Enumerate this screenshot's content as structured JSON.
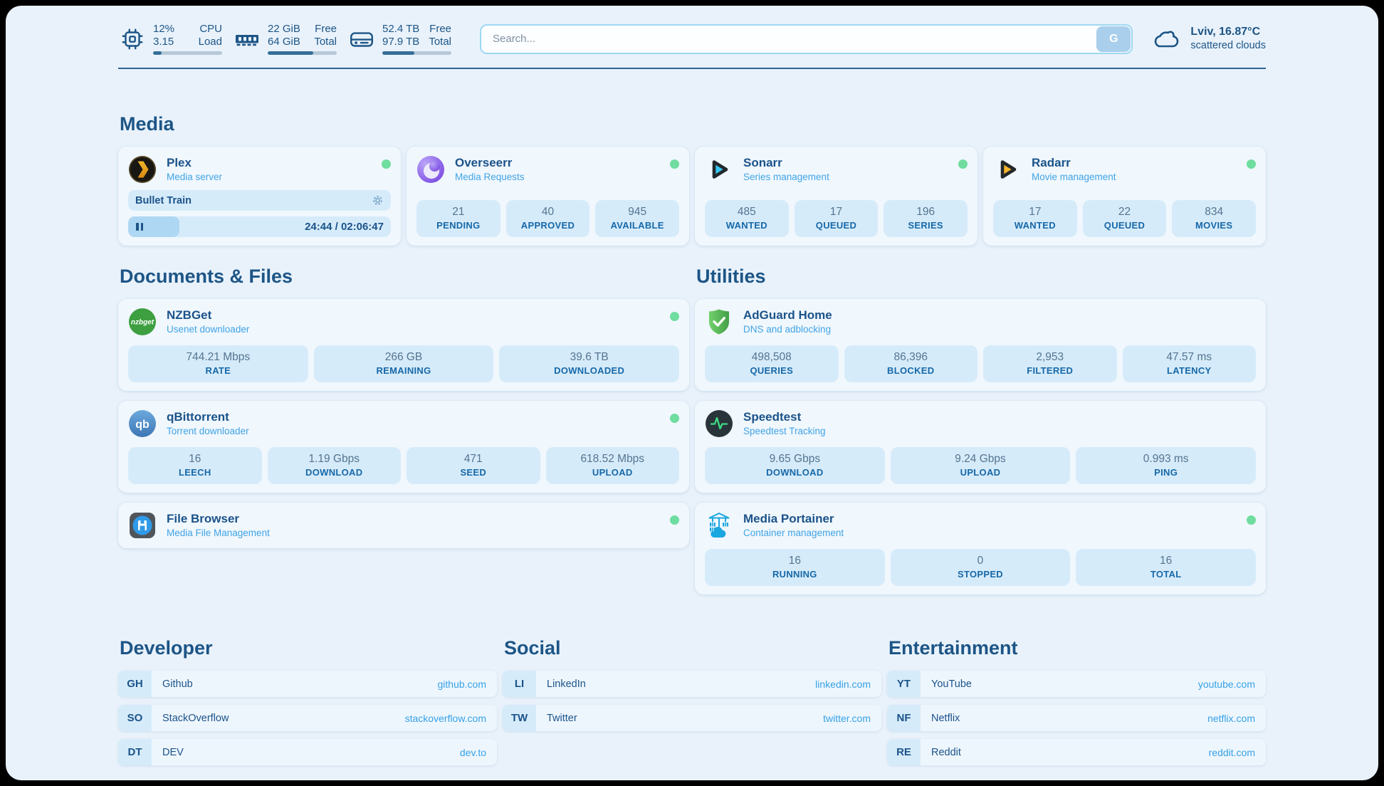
{
  "colors": {
    "accent": "#36a1e6",
    "navy": "#1d5586",
    "online_dot": "#6fdd9f",
    "tile_bg": "#d6ebfa",
    "panel_bg": "#e9f2fb"
  },
  "topbar": {
    "cpu": {
      "icon": "cpu-icon",
      "values": [
        "12%",
        "3.15"
      ],
      "labels": [
        "CPU",
        "Load"
      ],
      "progress": 12
    },
    "ram": {
      "icon": "ram-icon",
      "values": [
        "22 GiB",
        "64 GiB"
      ],
      "labels": [
        "Free",
        "Total"
      ],
      "progress": 66
    },
    "disk": {
      "icon": "disk-icon",
      "values": [
        "52.4 TB",
        "97.9 TB"
      ],
      "labels": [
        "Free",
        "Total"
      ],
      "progress": 46
    },
    "search": {
      "placeholder": "Search...",
      "button": "G"
    },
    "weather": {
      "icon": "cloud-icon",
      "location_temp": "Lviv, 16.87°C",
      "condition": "scattered clouds"
    }
  },
  "media": {
    "title": "Media",
    "plex": {
      "title": "Plex",
      "subtitle": "Media server",
      "now_playing": "Bullet Train",
      "time": "24:44 / 02:06:47",
      "progress": 19.5
    },
    "overseerr": {
      "title": "Overseerr",
      "subtitle": "Media Requests",
      "stats": [
        {
          "value": "21",
          "label": "PENDING"
        },
        {
          "value": "40",
          "label": "APPROVED"
        },
        {
          "value": "945",
          "label": "AVAILABLE"
        }
      ]
    },
    "sonarr": {
      "title": "Sonarr",
      "subtitle": "Series management",
      "stats": [
        {
          "value": "485",
          "label": "WANTED"
        },
        {
          "value": "17",
          "label": "QUEUED"
        },
        {
          "value": "196",
          "label": "SERIES"
        }
      ]
    },
    "radarr": {
      "title": "Radarr",
      "subtitle": "Movie management",
      "stats": [
        {
          "value": "17",
          "label": "WANTED"
        },
        {
          "value": "22",
          "label": "QUEUED"
        },
        {
          "value": "834",
          "label": "MOVIES"
        }
      ]
    }
  },
  "documents": {
    "title": "Documents & Files",
    "nzbget": {
      "title": "NZBGet",
      "subtitle": "Usenet downloader",
      "stats": [
        {
          "value": "744.21 Mbps",
          "label": "RATE"
        },
        {
          "value": "266 GB",
          "label": "REMAINING"
        },
        {
          "value": "39.6 TB",
          "label": "DOWNLOADED"
        }
      ]
    },
    "qbittorrent": {
      "title": "qBittorrent",
      "subtitle": "Torrent downloader",
      "stats": [
        {
          "value": "16",
          "label": "LEECH"
        },
        {
          "value": "1.19 Gbps",
          "label": "DOWNLOAD"
        },
        {
          "value": "471",
          "label": "SEED"
        },
        {
          "value": "618.52 Mbps",
          "label": "UPLOAD"
        }
      ]
    },
    "filebrowser": {
      "title": "File Browser",
      "subtitle": "Media File Management"
    }
  },
  "utilities": {
    "title": "Utilities",
    "adguard": {
      "title": "AdGuard Home",
      "subtitle": "DNS and adblocking",
      "stats": [
        {
          "value": "498,508",
          "label": "QUERIES"
        },
        {
          "value": "86,396",
          "label": "BLOCKED"
        },
        {
          "value": "2,953",
          "label": "FILTERED"
        },
        {
          "value": "47.57 ms",
          "label": "LATENCY"
        }
      ]
    },
    "speedtest": {
      "title": "Speedtest",
      "subtitle": "Speedtest Tracking",
      "stats": [
        {
          "value": "9.65 Gbps",
          "label": "DOWNLOAD"
        },
        {
          "value": "9.24 Gbps",
          "label": "UPLOAD"
        },
        {
          "value": "0.993 ms",
          "label": "PING"
        }
      ]
    },
    "portainer": {
      "title": "Media Portainer",
      "subtitle": "Container management",
      "stats": [
        {
          "value": "16",
          "label": "RUNNING"
        },
        {
          "value": "0",
          "label": "STOPPED"
        },
        {
          "value": "16",
          "label": "TOTAL"
        }
      ]
    }
  },
  "bookmarks": {
    "developer": {
      "title": "Developer",
      "links": [
        {
          "abbr": "GH",
          "name": "Github",
          "url": "github.com"
        },
        {
          "abbr": "SO",
          "name": "StackOverflow",
          "url": "stackoverflow.com"
        },
        {
          "abbr": "DT",
          "name": "DEV",
          "url": "dev.to"
        }
      ]
    },
    "social": {
      "title": "Social",
      "links": [
        {
          "abbr": "LI",
          "name": "LinkedIn",
          "url": "linkedin.com"
        },
        {
          "abbr": "TW",
          "name": "Twitter",
          "url": "twitter.com"
        }
      ]
    },
    "entertainment": {
      "title": "Entertainment",
      "links": [
        {
          "abbr": "YT",
          "name": "YouTube",
          "url": "youtube.com"
        },
        {
          "abbr": "NF",
          "name": "Netflix",
          "url": "netflix.com"
        },
        {
          "abbr": "RE",
          "name": "Reddit",
          "url": "reddit.com"
        }
      ]
    }
  }
}
